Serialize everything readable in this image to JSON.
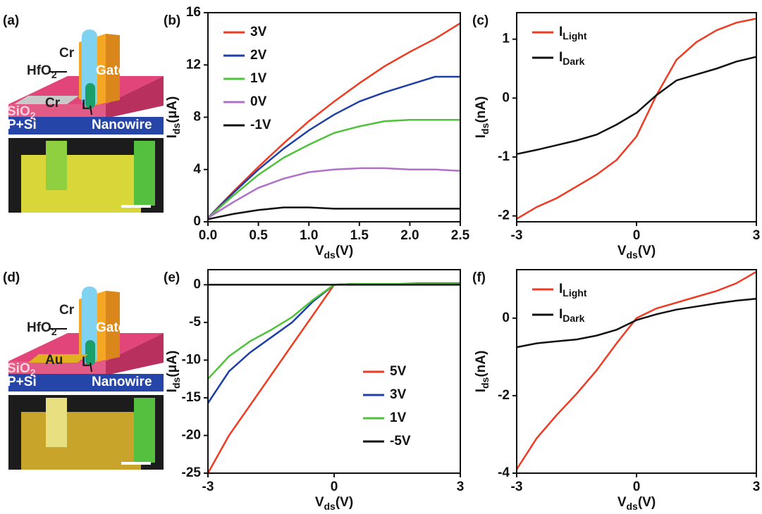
{
  "panels": [
    {
      "label": "(a)",
      "texts": [
        {
          "text": "Cr"
        },
        {
          "text": "HfO",
          "sub": "2"
        },
        {
          "text": "Gate"
        },
        {
          "text": "Cr"
        },
        {
          "text": "L"
        },
        {
          "text": "SiO",
          "sub": "2"
        },
        {
          "text": "P+Si"
        },
        {
          "text": "Nanowire"
        }
      ]
    },
    {
      "label": "(d)",
      "texts": [
        {
          "text": "Cr"
        },
        {
          "text": "HfO",
          "sub": "2"
        },
        {
          "text": "Gate"
        },
        {
          "text": "Au"
        },
        {
          "text": "L"
        },
        {
          "text": "SiO",
          "sub": "2"
        },
        {
          "text": "P+Si"
        },
        {
          "text": "Nanowire"
        }
      ]
    }
  ],
  "chart_data": [
    {
      "type": "line",
      "label": "(b)",
      "x_label": {
        "main": "V",
        "sub": "ds",
        "unit": "(V)"
      },
      "y_label": {
        "main": "I",
        "sub": "ds",
        "unit": "(μA)"
      },
      "x": [
        0,
        0.25,
        0.5,
        0.75,
        1,
        1.25,
        1.5,
        1.75,
        2,
        2.25,
        2.5
      ],
      "xlim": [
        0,
        2.5
      ],
      "xticks": [
        {
          "value": 0,
          "label": "0.0"
        },
        {
          "value": 0.5,
          "label": "0.5"
        },
        {
          "value": 1,
          "label": "1.0"
        },
        {
          "value": 1.5,
          "label": "1.5"
        },
        {
          "value": 2,
          "label": "2.0"
        },
        {
          "value": 2.5,
          "label": "2.5"
        }
      ],
      "ylim": [
        0,
        16
      ],
      "yticks": [
        0,
        4,
        8,
        12,
        16
      ],
      "legend": "upper left",
      "series": [
        {
          "name": "3V",
          "color": "#f03a22",
          "values": [
            0.3,
            2.3,
            4.2,
            6.0,
            7.7,
            9.2,
            10.6,
            11.9,
            13.0,
            14.0,
            15.2
          ]
        },
        {
          "name": "2V",
          "color": "#1f3fa8",
          "values": [
            0.3,
            2.2,
            4.0,
            5.6,
            7.0,
            8.2,
            9.2,
            9.9,
            10.5,
            11.1,
            11.1
          ]
        },
        {
          "name": "1V",
          "color": "#4ec23a",
          "values": [
            0.3,
            2.0,
            3.6,
            4.9,
            5.9,
            6.8,
            7.3,
            7.7,
            7.8,
            7.8,
            7.8
          ]
        },
        {
          "name": "0V",
          "color": "#b070c8",
          "values": [
            0.3,
            1.5,
            2.6,
            3.3,
            3.8,
            4.0,
            4.1,
            4.1,
            4.0,
            4.0,
            3.9
          ]
        },
        {
          "name": "-1V",
          "color": "#111111",
          "values": [
            0.2,
            0.6,
            0.9,
            1.1,
            1.1,
            1.0,
            1.0,
            1.0,
            1.0,
            1.0,
            1.0
          ]
        }
      ]
    },
    {
      "type": "line",
      "label": "(c)",
      "x_label": {
        "main": "V",
        "sub": "ds",
        "unit": "(V)"
      },
      "y_label": {
        "main": "I",
        "sub": "ds",
        "unit": "(nA)"
      },
      "x": [
        -3,
        -2.5,
        -2,
        -1.5,
        -1,
        -0.5,
        0,
        0.5,
        1,
        1.5,
        2,
        2.5,
        3
      ],
      "xlim": [
        -3,
        3
      ],
      "xticks": [
        -3,
        0,
        3
      ],
      "ylim": [
        -2.1,
        1.45
      ],
      "yticks": [
        -2,
        -1,
        0,
        1
      ],
      "legend": "upper left",
      "series": [
        {
          "name": "I",
          "subscript": "Light",
          "color": "#f03a22",
          "values": [
            -2.05,
            -1.85,
            -1.7,
            -1.5,
            -1.3,
            -1.05,
            -0.65,
            0.05,
            0.65,
            0.95,
            1.15,
            1.28,
            1.35
          ]
        },
        {
          "name": "I",
          "subscript": "Dark",
          "color": "#111111",
          "values": [
            -0.95,
            -0.88,
            -0.8,
            -0.72,
            -0.62,
            -0.45,
            -0.25,
            0.05,
            0.3,
            0.4,
            0.5,
            0.62,
            0.7
          ]
        }
      ]
    },
    {
      "type": "line",
      "label": "(e)",
      "x_label": {
        "main": "V",
        "sub": "ds",
        "unit": "(V)"
      },
      "y_label": {
        "main": "I",
        "sub": "ds",
        "unit": "(μA)"
      },
      "x": [
        -3,
        -2.5,
        -2,
        -1.5,
        -1,
        -0.5,
        0,
        0.5,
        1,
        1.5,
        2,
        2.5,
        3
      ],
      "xlim": [
        -3,
        3
      ],
      "xticks": [
        -3,
        0,
        3
      ],
      "ylim": [
        -25,
        2
      ],
      "yticks": [
        0,
        -5,
        -10,
        -15,
        -20,
        -25
      ],
      "legend": "center right",
      "series": [
        {
          "name": "5V",
          "color": "#f03a22",
          "values": [
            -25,
            -20,
            -16,
            -12,
            -8,
            -4,
            0,
            0.1,
            0.1,
            0.1,
            0.2,
            0.2,
            0.2
          ]
        },
        {
          "name": "3V",
          "color": "#1f3fa8",
          "values": [
            -15.7,
            -11.5,
            -9,
            -7,
            -5,
            -2.2,
            0,
            0.1,
            0.1,
            0.1,
            0.1,
            0.1,
            0.1
          ]
        },
        {
          "name": "1V",
          "color": "#4ec23a",
          "values": [
            -12.5,
            -9.5,
            -7.5,
            -6,
            -4.3,
            -2,
            0,
            0.1,
            0.1,
            0.1,
            0.1,
            0.1,
            0.1
          ]
        },
        {
          "name": "-5V",
          "color": "#111111",
          "values": [
            0,
            0,
            0,
            0,
            0,
            0,
            0,
            0,
            0,
            0,
            0,
            0,
            0
          ]
        }
      ]
    },
    {
      "type": "line",
      "label": "(f)",
      "x_label": {
        "main": "V",
        "sub": "ds",
        "unit": "(V)"
      },
      "y_label": {
        "main": "I",
        "sub": "ds",
        "unit": "(nA)"
      },
      "x": [
        -3,
        -2.5,
        -2,
        -1.5,
        -1,
        -0.5,
        0,
        0.5,
        1,
        1.5,
        2,
        2.5,
        3
      ],
      "xlim": [
        -3,
        3
      ],
      "xticks": [
        -3,
        0,
        3
      ],
      "ylim": [
        -4,
        1.25
      ],
      "yticks": [
        -4,
        -2,
        0
      ],
      "legend": "upper left",
      "series": [
        {
          "name": "I",
          "subscript": "Light",
          "color": "#f03a22",
          "values": [
            -3.9,
            -3.1,
            -2.5,
            -1.95,
            -1.35,
            -0.65,
            0,
            0.25,
            0.4,
            0.55,
            0.7,
            0.9,
            1.2
          ]
        },
        {
          "name": "I",
          "subscript": "Dark",
          "color": "#111111",
          "values": [
            -0.75,
            -0.65,
            -0.6,
            -0.55,
            -0.45,
            -0.3,
            -0.05,
            0.1,
            0.22,
            0.3,
            0.38,
            0.45,
            0.5
          ]
        }
      ]
    }
  ]
}
